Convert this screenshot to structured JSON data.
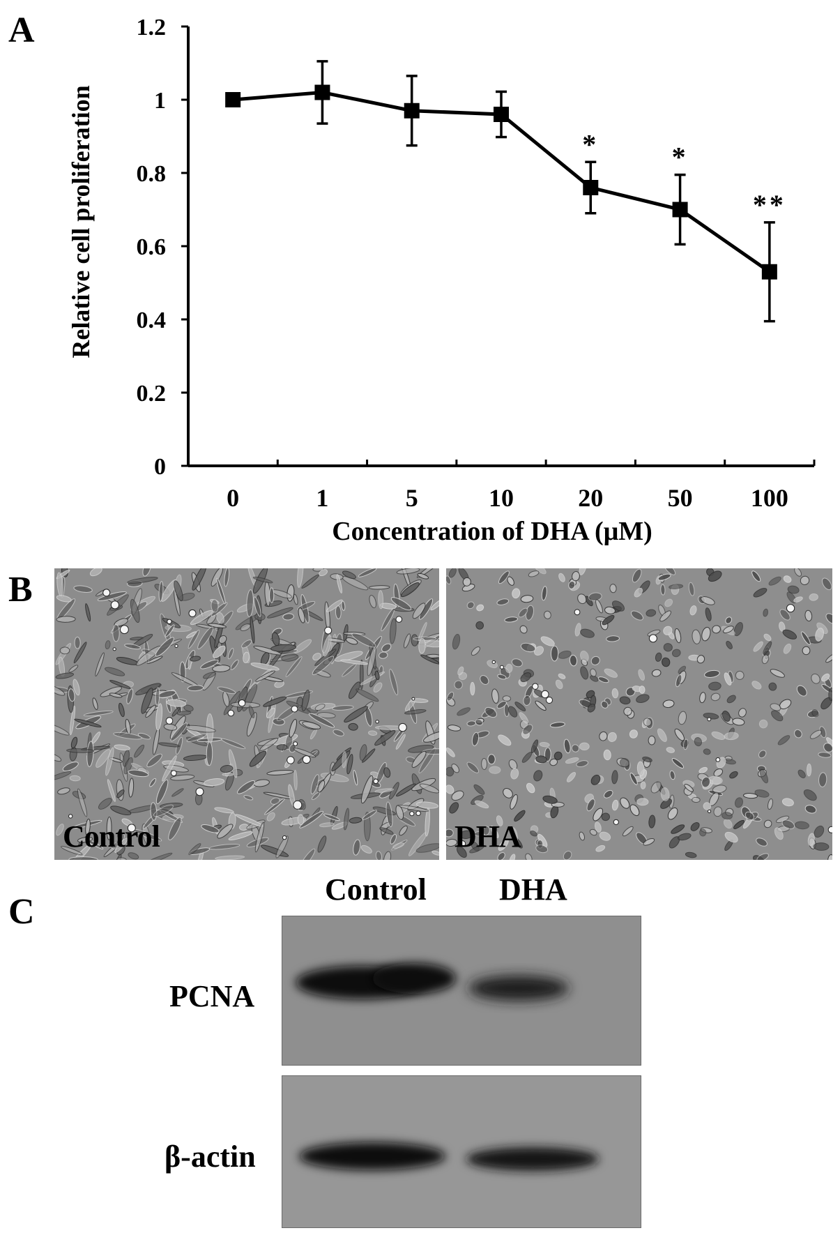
{
  "panels": {
    "a": "A",
    "b": "B",
    "c": "C"
  },
  "chart_data": {
    "type": "line",
    "categories": [
      "0",
      "1",
      "5",
      "10",
      "20",
      "50",
      "100"
    ],
    "series": [
      {
        "values": [
          1.0,
          1.02,
          0.97,
          0.96,
          0.76,
          0.7,
          0.53
        ],
        "error": [
          0.0,
          0.085,
          0.095,
          0.062,
          0.07,
          0.095,
          0.135
        ],
        "significance": [
          "",
          "",
          "",
          "",
          "*",
          "*",
          "**"
        ]
      }
    ],
    "title": "",
    "xlabel": "Concentration of DHA (μM)",
    "ylabel": "Relative cell proliferation",
    "ylim": [
      0,
      1.2
    ],
    "yticks": [
      "0",
      "0.2",
      "0.4",
      "0.6",
      "0.8",
      "1",
      "1.2"
    ],
    "grid": false,
    "legend": "none"
  },
  "micrographs": {
    "left_label": "Control",
    "right_label": "DHA"
  },
  "blot": {
    "lanes": [
      "Control",
      "DHA"
    ],
    "rows": [
      "PCNA",
      "β-actin"
    ]
  }
}
